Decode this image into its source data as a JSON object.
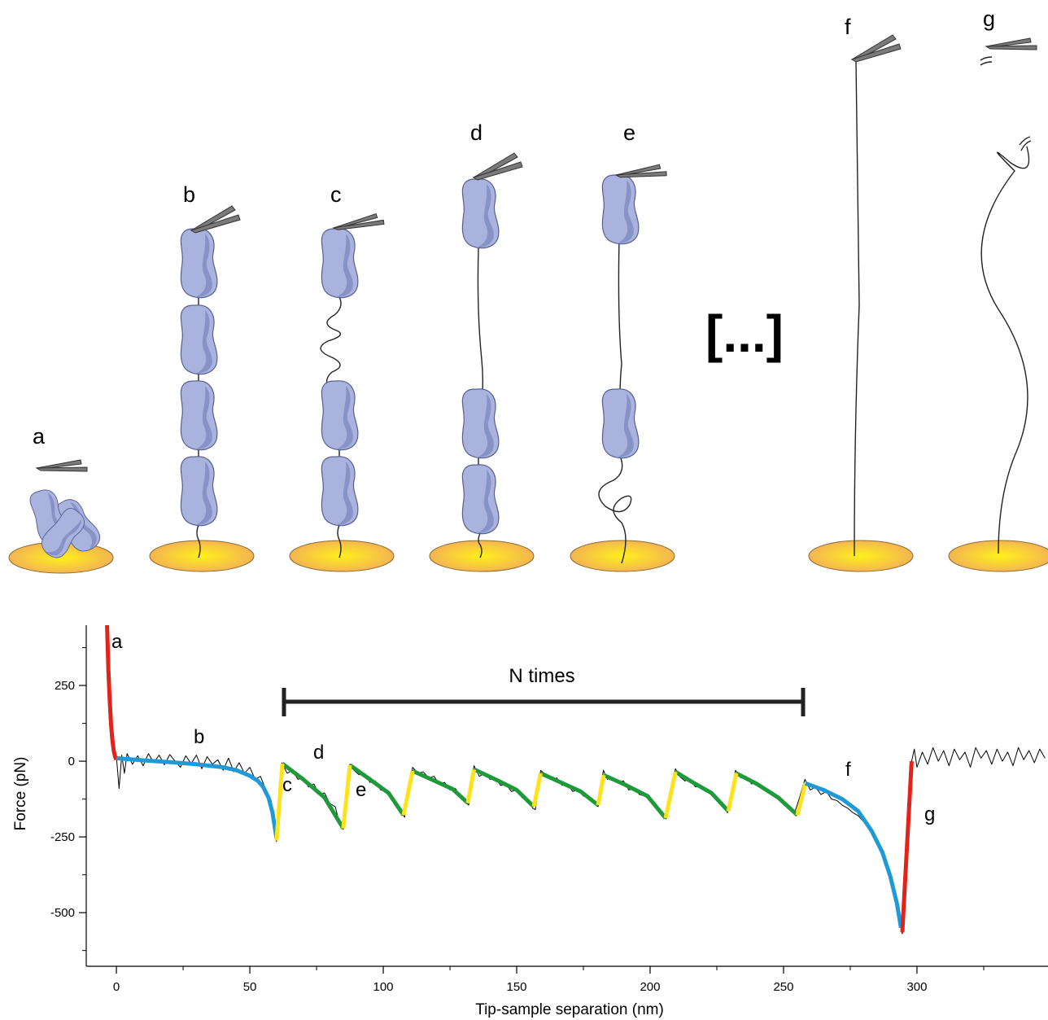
{
  "diagram": {
    "stage_labels": [
      "a",
      "b",
      "c",
      "d",
      "e",
      "f",
      "g"
    ],
    "ellipsis": "[...]"
  },
  "chart_data": {
    "type": "line",
    "xlabel": "Tip-sample separation (nm)",
    "ylabel": "Force (pN)",
    "annotations": [
      "a",
      "b",
      "c",
      "d",
      "e",
      "f",
      "g"
    ],
    "bracket_label": "N times",
    "xlim": [
      -11.3,
      349.1
    ],
    "ylim": [
      -677,
      449
    ],
    "xticks": [
      0,
      50,
      100,
      150,
      200,
      250,
      300
    ],
    "yticks": [
      -500,
      -250,
      0,
      250
    ],
    "xminorticks": [
      25,
      75,
      125,
      175,
      225,
      275,
      325
    ],
    "yminorticks": [
      -625,
      -375,
      -125,
      125,
      375
    ],
    "trace": {
      "color": "#000000",
      "x": [
        0,
        1,
        2,
        3,
        4,
        6,
        8,
        10,
        12,
        14,
        16,
        18,
        20,
        22,
        24,
        26,
        28,
        30,
        32,
        34,
        36,
        38,
        40,
        42,
        44,
        46,
        48,
        50,
        52,
        54,
        56,
        58,
        59,
        60,
        62,
        64,
        66,
        68,
        70,
        72,
        74,
        76,
        78,
        80,
        82,
        83,
        84,
        85,
        87.5,
        89,
        91,
        93,
        95,
        97,
        99,
        101,
        103,
        105,
        107,
        108,
        111,
        113,
        115,
        117,
        119,
        121,
        123,
        125,
        127,
        129,
        131,
        132,
        134,
        136,
        138,
        140,
        142,
        144,
        146,
        148,
        150,
        152,
        154,
        156,
        157,
        159,
        161,
        163,
        165,
        167,
        169,
        171,
        173,
        175,
        177,
        179,
        180.5,
        182.5,
        184,
        186,
        188,
        190,
        192,
        194,
        196,
        198,
        200,
        202,
        204,
        206,
        209.5,
        211,
        213,
        215,
        217,
        219,
        221,
        223,
        225,
        227,
        229,
        232,
        234,
        236,
        238,
        240,
        242,
        244,
        246,
        248,
        250,
        252,
        254,
        256,
        258,
        260,
        262,
        264,
        266,
        268,
        270,
        272,
        274,
        276,
        278,
        280,
        282,
        284,
        286,
        288,
        290,
        292,
        293.5,
        294.5,
        298,
        299,
        300,
        302,
        304,
        306,
        308,
        310,
        312,
        314,
        316,
        318,
        320,
        322,
        324,
        326,
        328,
        330,
        332,
        334,
        336,
        338,
        340,
        342,
        344,
        346,
        348
      ],
      "values": [
        15,
        -90,
        20,
        -40,
        25,
        -10,
        18,
        -15,
        25,
        -5,
        20,
        -12,
        22,
        0,
        -20,
        18,
        -8,
        20,
        -25,
        15,
        -10,
        5,
        -30,
        10,
        -35,
        -5,
        -40,
        -20,
        -60,
        -50,
        -95,
        -130,
        -200,
        -265,
        -5,
        -40,
        -30,
        -60,
        -55,
        -85,
        -75,
        -110,
        -105,
        -140,
        -150,
        -185,
        -200,
        -225,
        -10,
        -30,
        -45,
        -40,
        -70,
        -65,
        -95,
        -100,
        -125,
        -135,
        -170,
        -185,
        -20,
        -40,
        -35,
        -55,
        -50,
        -75,
        -70,
        -95,
        -90,
        -115,
        -135,
        -145,
        -15,
        -50,
        -40,
        -60,
        -55,
        -80,
        -75,
        -100,
        -95,
        -120,
        -125,
        -155,
        -160,
        -30,
        -45,
        -60,
        -55,
        -80,
        -75,
        -100,
        -95,
        -115,
        -120,
        -140,
        -150,
        -30,
        -60,
        -55,
        -70,
        -65,
        -95,
        -90,
        -110,
        -115,
        -130,
        -140,
        -165,
        -190,
        -25,
        -50,
        -65,
        -60,
        -85,
        -80,
        -100,
        -105,
        -125,
        -140,
        -170,
        -30,
        -55,
        -50,
        -75,
        -70,
        -90,
        -95,
        -115,
        -120,
        -140,
        -155,
        -175,
        -120,
        -60,
        -95,
        -85,
        -110,
        -100,
        -125,
        -130,
        -145,
        -155,
        -170,
        -180,
        -200,
        -225,
        -250,
        -285,
        -320,
        -370,
        -440,
        -520,
        -570,
        0,
        40,
        -20,
        30,
        -10,
        45,
        0,
        35,
        -15,
        40,
        5,
        30,
        -20,
        45,
        10,
        35,
        -10,
        40,
        0,
        30,
        -15,
        45,
        5,
        35,
        -5,
        40,
        10
      ]
    },
    "series": [
      {
        "color": "#e2231a",
        "x": [
          -3.5,
          -3,
          -2.5,
          -2,
          -1.5,
          -1,
          -0.5,
          0
        ],
        "values": [
          449,
          300,
          200,
          120,
          70,
          35,
          15,
          5
        ]
      },
      {
        "color": "#1e9bd7",
        "x": [
          0,
          10,
          20,
          30,
          40,
          45,
          50,
          53,
          55,
          57,
          58.5,
          60
        ],
        "values": [
          10,
          3,
          -3,
          -10,
          -20,
          -30,
          -48,
          -65,
          -85,
          -120,
          -170,
          -255
        ]
      },
      {
        "color": "#1f9a3a",
        "x": [
          62.2,
          70,
          78,
          85,
          null,
          87.5,
          95,
          102,
          107.6,
          null,
          111,
          118,
          126,
          131.7,
          null,
          134,
          142,
          150,
          156.4,
          null,
          159,
          166,
          174,
          180.5,
          null,
          182.6,
          190,
          199,
          205.8,
          null,
          209.5,
          216,
          223,
          229.3,
          null,
          232.3,
          240,
          248,
          255.2
        ],
        "values": [
          -8,
          -60,
          -120,
          -222,
          null,
          -13,
          -60,
          -105,
          -178,
          null,
          -32,
          -60,
          -92,
          -138,
          null,
          -27,
          -60,
          -95,
          -150,
          null,
          -40,
          -68,
          -100,
          -145,
          null,
          -46,
          -75,
          -115,
          -188,
          null,
          -35,
          -70,
          -105,
          -165,
          null,
          -40,
          -75,
          -120,
          -178
        ]
      },
      {
        "color": "#ffe21a",
        "x": [
          60,
          62.2,
          null,
          85,
          87.5,
          null,
          107.6,
          111,
          null,
          131.7,
          134,
          null,
          156.4,
          159,
          null,
          180.5,
          182.6,
          null,
          205.8,
          209.5,
          null,
          229.3,
          232.3,
          null,
          255.2,
          258.2
        ],
        "values": [
          -262,
          -8,
          null,
          -222,
          -13,
          null,
          -178,
          -32,
          null,
          -138,
          -27,
          null,
          -150,
          -40,
          null,
          -145,
          -46,
          null,
          -188,
          -35,
          null,
          -165,
          -40,
          null,
          -178,
          -73
        ]
      },
      {
        "color": "#1e9bd7",
        "x": [
          258.2,
          265,
          272,
          278,
          283,
          287,
          290,
          292.5,
          294
        ],
        "values": [
          -73,
          -95,
          -125,
          -165,
          -230,
          -300,
          -380,
          -470,
          -550
        ]
      },
      {
        "color": "#e2231a",
        "x": [
          294.5,
          298
        ],
        "values": [
          -565,
          0
        ]
      }
    ]
  }
}
